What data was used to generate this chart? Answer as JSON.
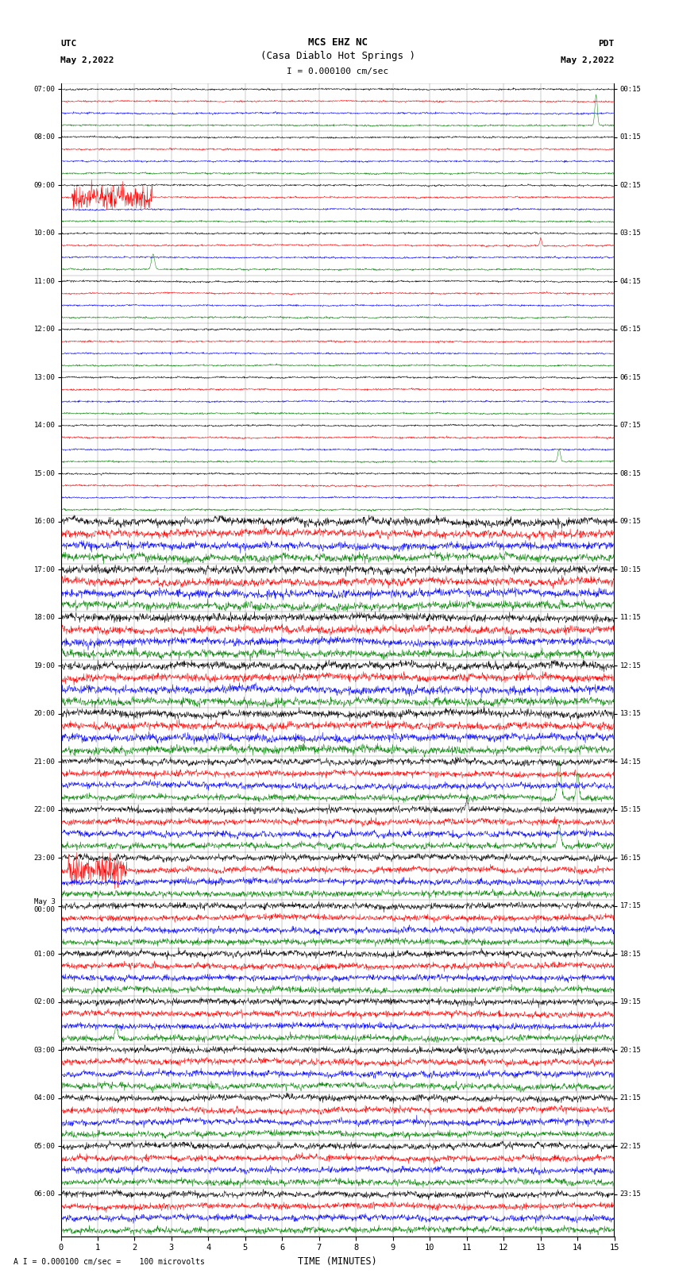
{
  "title_line1": "MCS EHZ NC",
  "title_line2": "(Casa Diablo Hot Springs )",
  "scale_label": "I = 0.000100 cm/sec",
  "footer_label": "A I = 0.000100 cm/sec =    100 microvolts",
  "xlabel": "TIME (MINUTES)",
  "left_header": "UTC",
  "left_subheader": "May 2,2022",
  "right_header": "PDT",
  "right_subheader": "May 2,2022",
  "utc_labels": [
    "07:00",
    "08:00",
    "09:00",
    "10:00",
    "11:00",
    "12:00",
    "13:00",
    "14:00",
    "15:00",
    "16:00",
    "17:00",
    "18:00",
    "19:00",
    "20:00",
    "21:00",
    "22:00",
    "23:00",
    "May 3\n00:00",
    "01:00",
    "02:00",
    "03:00",
    "04:00",
    "05:00",
    "06:00"
  ],
  "pdt_labels": [
    "00:15",
    "01:15",
    "02:15",
    "03:15",
    "04:15",
    "05:15",
    "06:15",
    "07:15",
    "08:15",
    "09:15",
    "10:15",
    "11:15",
    "12:15",
    "13:15",
    "14:15",
    "15:15",
    "16:15",
    "17:15",
    "18:15",
    "19:15",
    "20:15",
    "21:15",
    "22:15",
    "23:15"
  ],
  "trace_colors": [
    "black",
    "red",
    "blue",
    "green"
  ],
  "bg_color": "white",
  "n_hours": 24,
  "n_traces_per_hour": 4,
  "n_cols": 1800,
  "minutes": 15,
  "figsize": [
    8.5,
    16.13
  ],
  "dpi": 100,
  "lw": 0.35
}
